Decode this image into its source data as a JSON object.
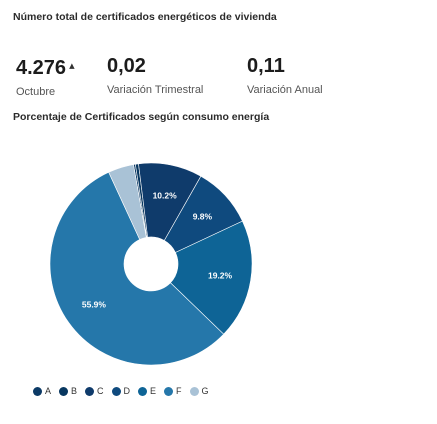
{
  "header": {
    "title": "Número total de certificados energéticos de vivienda"
  },
  "kpis": {
    "month": {
      "value": "4.276",
      "label": "Octubre",
      "trend_icon": "up-arrow-icon"
    },
    "quarter": {
      "value": "0,02",
      "label": "Variación Trimestral"
    },
    "year": {
      "value": "0,11",
      "label": "Variación Anual"
    }
  },
  "chart_section": {
    "title": "Porcentaje de Certificados según consumo energía"
  },
  "colors": {
    "A": "#0c3a66",
    "B": "#083760",
    "C": "#0f3b6b",
    "D": "#0f4a7e",
    "E": "#0e6496",
    "F": "#2577aa",
    "G": "#a9c2d6"
  },
  "chart_data": {
    "type": "pie",
    "style": "donut",
    "title": "Porcentaje de Certificados según consumo energía",
    "categories": [
      "A",
      "B",
      "C",
      "D",
      "E",
      "F",
      "G"
    ],
    "values": [
      0.3,
      0.5,
      10.2,
      9.8,
      19.2,
      55.9,
      4.1
    ],
    "data_labels": [
      "",
      "",
      "10.2%",
      "9.8%",
      "19.2%",
      "55.9%",
      ""
    ],
    "legend_position": "bottom"
  }
}
